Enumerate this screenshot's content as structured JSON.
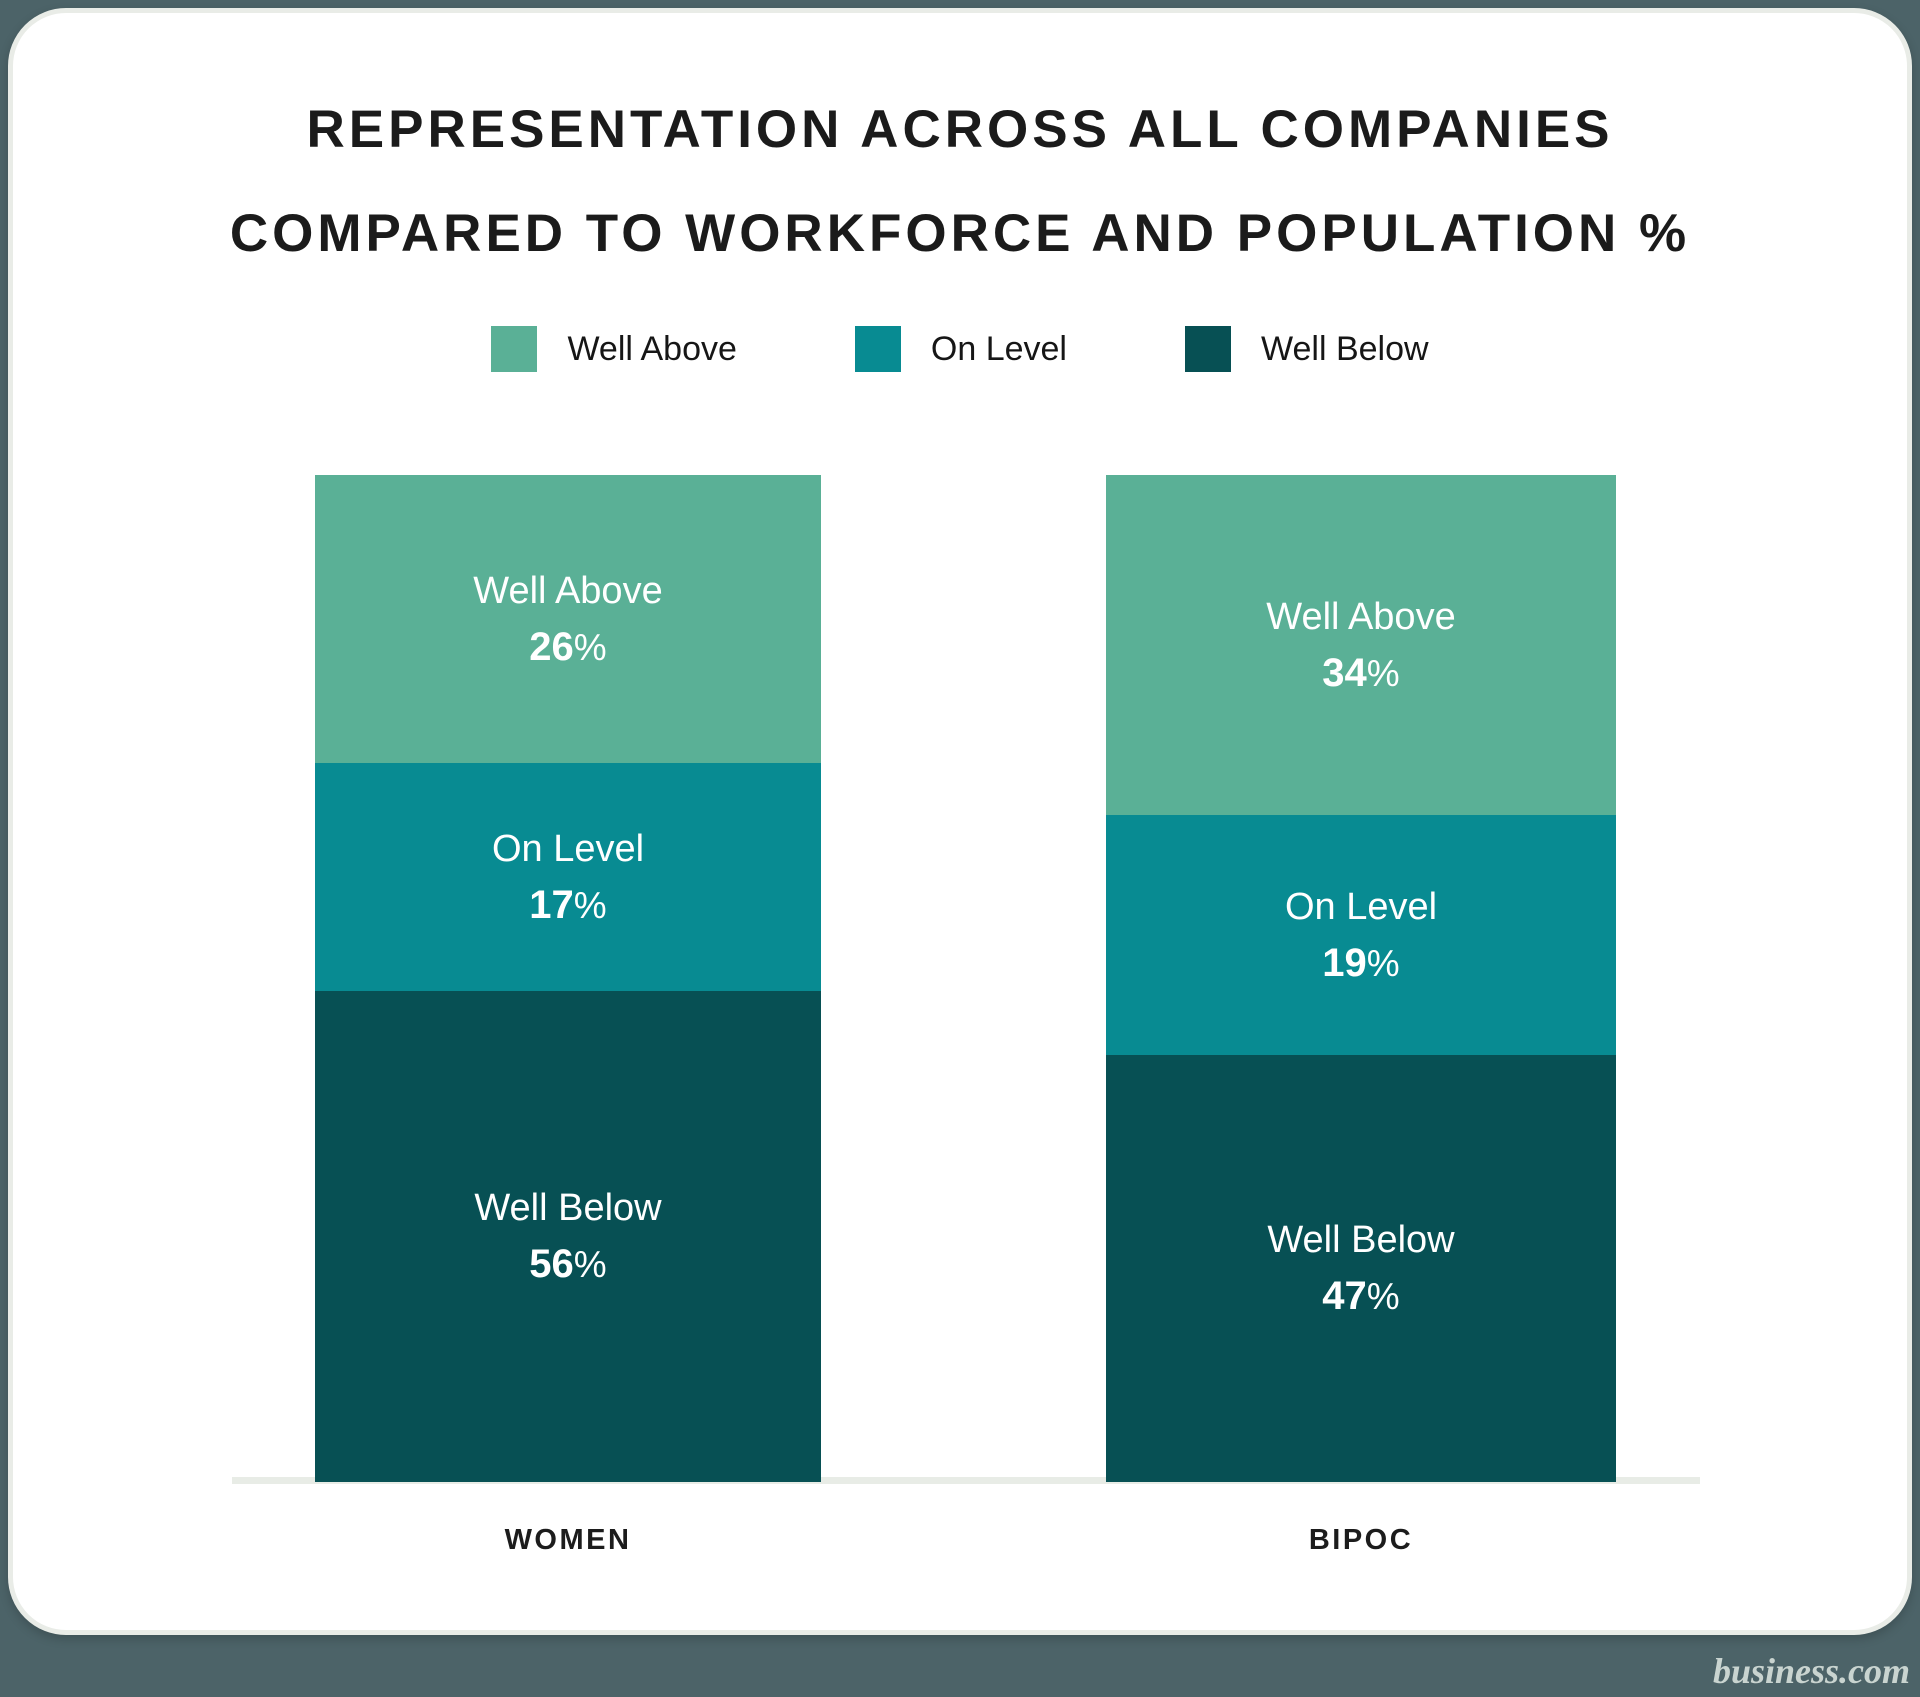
{
  "title": {
    "line1": "REPRESENTATION ACROSS ALL COMPANIES",
    "line2": "COMPARED TO WORKFORCE AND POPULATION %"
  },
  "watermark": {
    "text": "business.com"
  },
  "colors": {
    "outer_background": "#4C6368",
    "card_background": "#FFFFFF",
    "card_border": "#E9ECE7",
    "axis_line": "#E8ECE6",
    "title_text": "#1B1B1B",
    "segment_text": "#FFFFFF",
    "watermark_text": "#C9D4D0"
  },
  "chart_data": {
    "type": "bar",
    "stacked": true,
    "title": "REPRESENTATION ACROSS ALL COMPANIES COMPARED TO WORKFORCE AND POPULATION %",
    "legend_position": "top",
    "grid": false,
    "value_suffix": "%",
    "categories": [
      "WOMEN",
      "BIPOC"
    ],
    "series": [
      {
        "name": "Well Above",
        "color": "#5AB096",
        "values": [
          26,
          34
        ]
      },
      {
        "name": "On Level",
        "color": "#088B92",
        "values": [
          17,
          19
        ]
      },
      {
        "name": "Well Below",
        "color": "#075054",
        "values": [
          56,
          47
        ]
      }
    ]
  }
}
